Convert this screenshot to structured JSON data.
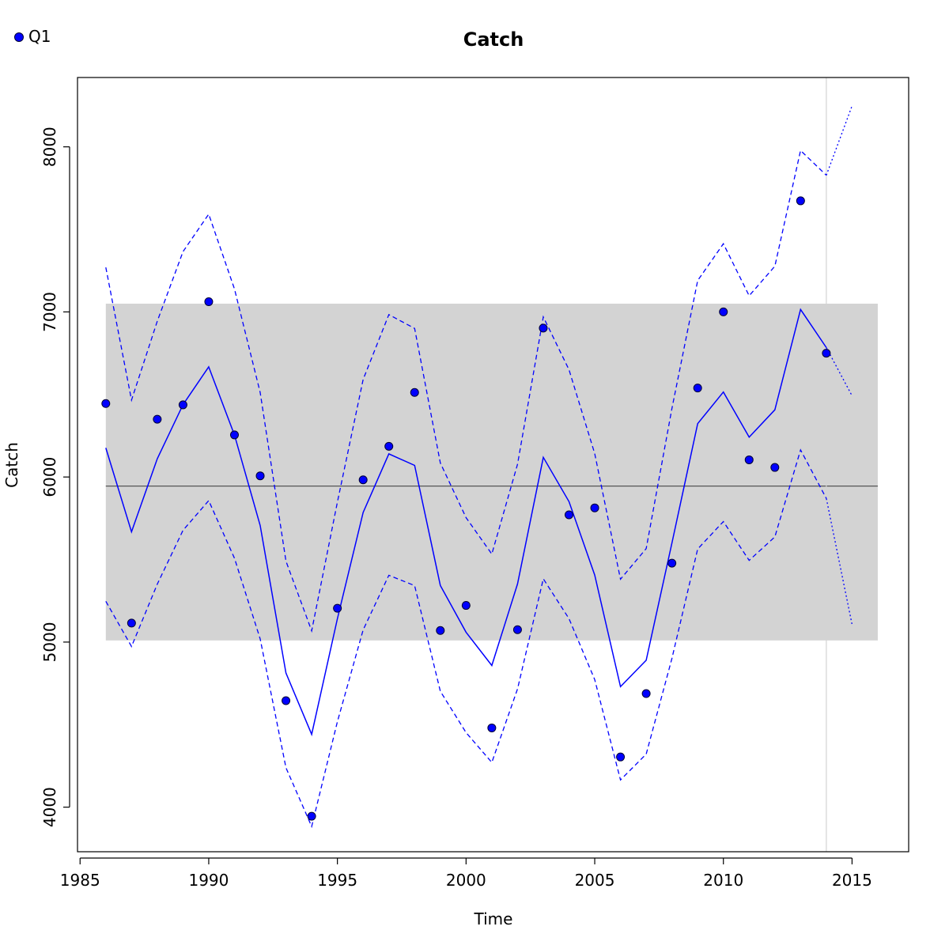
{
  "chart_data": {
    "type": "line",
    "title": "Catch",
    "xlabel": "Time",
    "ylabel": "Catch",
    "xlim": [
      1984.9,
      2017.2
    ],
    "ylim": [
      3730,
      8420
    ],
    "xticks": [
      1985,
      1990,
      1995,
      2000,
      2005,
      2010,
      2015
    ],
    "yticks": [
      4000,
      5000,
      6000,
      7000,
      8000
    ],
    "xtick_labels": [
      "1985",
      "1990",
      "1995",
      "2000",
      "2005",
      "2010",
      "2015"
    ],
    "ytick_labels": [
      "4000",
      "5000",
      "6000",
      "7000",
      "8000"
    ],
    "grid": false,
    "legend": {
      "position": "top-left",
      "entries": [
        {
          "label": "Q1",
          "color": "#0000ff",
          "marker": "filled-circle"
        }
      ]
    },
    "band": {
      "x": [
        1986,
        2016
      ],
      "y": [
        5010,
        7050
      ],
      "color": "#d3d3d3"
    },
    "hline": {
      "y": 5945,
      "color": "#555555"
    },
    "vline": {
      "x": 2014,
      "color": "#d3d3d3"
    },
    "colors": {
      "series": "#0000ff",
      "point_edge": "#000033"
    },
    "observations": {
      "name": "Q1",
      "x": [
        1986,
        1987,
        1988,
        1989,
        1990,
        1991,
        1992,
        1993,
        1994,
        1995,
        1996,
        1997,
        1998,
        1999,
        2000,
        2001,
        2002,
        2003,
        2004,
        2005,
        2006,
        2007,
        2008,
        2009,
        2010,
        2011,
        2012,
        2013,
        2014
      ],
      "y": [
        6445,
        5115,
        6350,
        6437,
        7062,
        6255,
        6007,
        4645,
        3945,
        5205,
        5983,
        6186,
        6512,
        5070,
        5222,
        4480,
        5075,
        6902,
        5771,
        5813,
        4304,
        4688,
        5478,
        6539,
        7000,
        6104,
        6058,
        7673,
        6750
      ]
    },
    "fit": {
      "x": [
        1986,
        1987,
        1988,
        1989,
        1990,
        1991,
        1992,
        1993,
        1994,
        1995,
        1996,
        1997,
        1998,
        1999,
        2000,
        2001,
        2002,
        2003,
        2004,
        2005,
        2006,
        2007,
        2008,
        2009,
        2010,
        2011,
        2012,
        2013,
        2014
      ],
      "y": [
        6176,
        5668,
        6111,
        6438,
        6667,
        6254,
        5706,
        4812,
        4441,
        5141,
        5785,
        6140,
        6070,
        5343,
        5060,
        4858,
        5352,
        6119,
        5851,
        5406,
        4730,
        4890,
        5599,
        6323,
        6515,
        6241,
        6407,
        7015,
        6784
      ]
    },
    "fit_forecast": {
      "x": [
        2014,
        2015
      ],
      "y": [
        6784,
        6492
      ]
    },
    "upper": {
      "x": [
        1986,
        1987,
        1988,
        1989,
        1990,
        1991,
        1992,
        1993,
        1994,
        1995,
        1996,
        1997,
        1998,
        1999,
        2000,
        2001,
        2002,
        2003,
        2004,
        2005,
        2006,
        2007,
        2008,
        2009,
        2010,
        2011,
        2012,
        2013,
        2014
      ],
      "y": [
        7270,
        6466,
        6944,
        7365,
        7592,
        7139,
        6512,
        5490,
        5068,
        5847,
        6591,
        6984,
        6900,
        6085,
        5754,
        5533,
        6077,
        6970,
        6650,
        6142,
        5381,
        5566,
        6414,
        7190,
        7413,
        7098,
        7277,
        7978,
        7828
      ]
    },
    "upper_forecast": {
      "x": [
        2014,
        2015
      ],
      "y": [
        7828,
        8248
      ]
    },
    "lower": {
      "x": [
        1986,
        1987,
        1988,
        1989,
        1990,
        1991,
        1992,
        1993,
        1994,
        1995,
        1996,
        1997,
        1998,
        1999,
        2000,
        2001,
        2002,
        2003,
        2004,
        2005,
        2006,
        2007,
        2008,
        2009,
        2010,
        2011,
        2012,
        2013,
        2014
      ],
      "y": [
        5247,
        4973,
        5351,
        5677,
        5857,
        5508,
        5019,
        4239,
        3883,
        4517,
        5074,
        5405,
        5342,
        4702,
        4452,
        4271,
        4716,
        5383,
        5142,
        4773,
        4165,
        4321,
        4900,
        5564,
        5730,
        5495,
        5637,
        6164,
        5870
      ]
    },
    "lower_forecast": {
      "x": [
        2014,
        2015
      ],
      "y": [
        5870,
        5107
      ]
    }
  }
}
